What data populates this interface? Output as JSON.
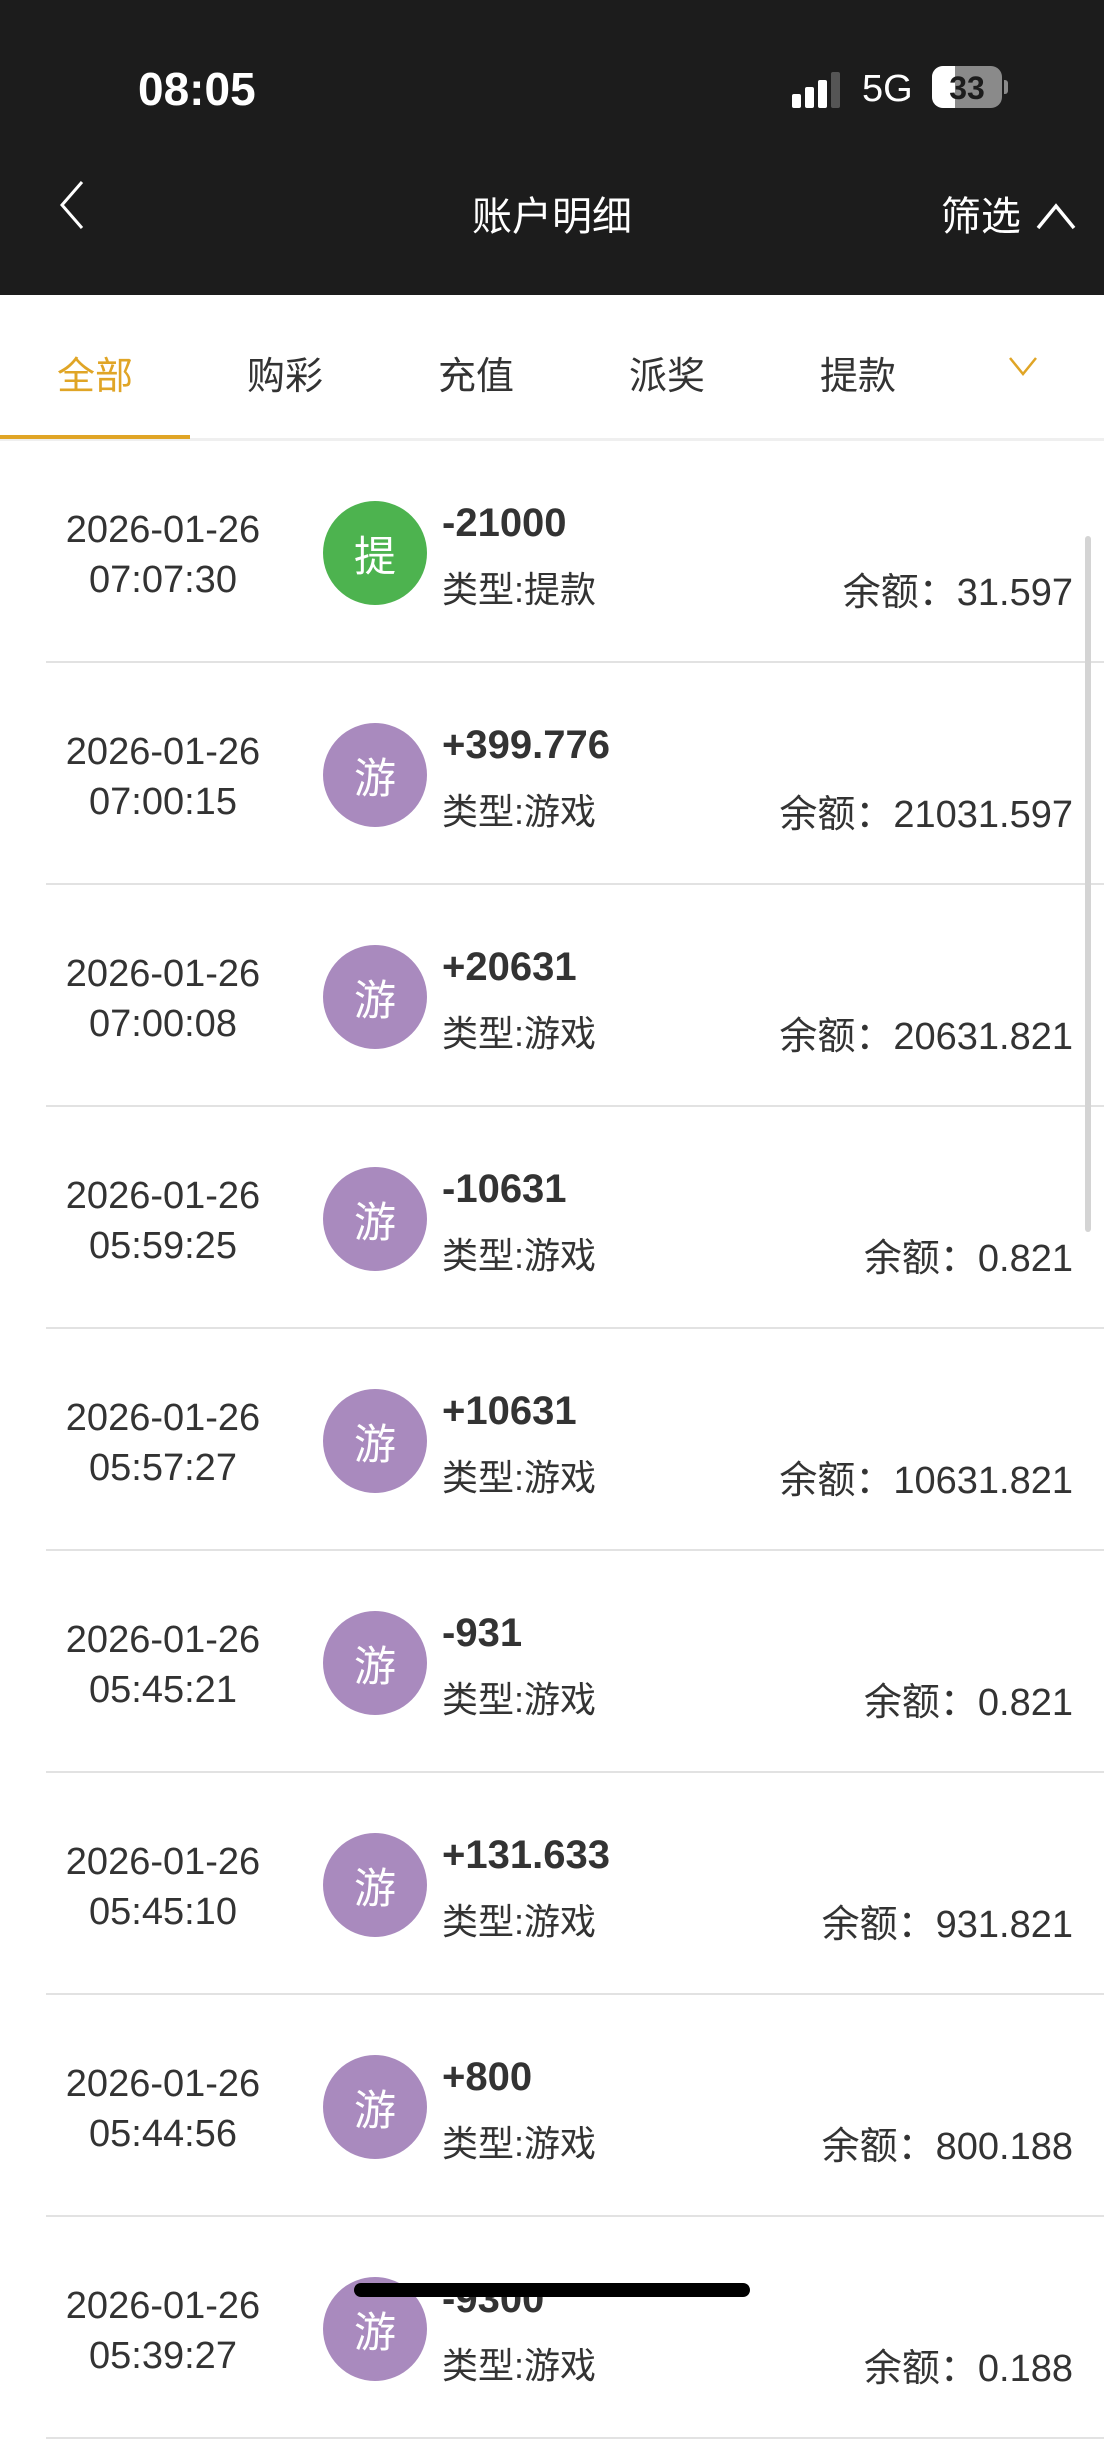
{
  "status_bar": {
    "time": "08:05",
    "network": "5G",
    "battery": "33",
    "battery_level": 0.33
  },
  "nav": {
    "back_icon": "chevron-left-icon",
    "title": "账户明细",
    "filter_label": "筛选",
    "filter_icon": "chevron-up-icon"
  },
  "tabs": {
    "items": [
      {
        "label": "全部",
        "active": true
      },
      {
        "label": "购彩"
      },
      {
        "label": "充值"
      },
      {
        "label": "派奖"
      },
      {
        "label": "提款"
      }
    ],
    "more_icon": "chevron-down-icon"
  },
  "colors": {
    "accent": "#e0a526",
    "withdraw_badge": "#4db34f",
    "game_badge": "#a98abe"
  },
  "records": [
    {
      "date": "2026-01-26",
      "time": "07:07:30",
      "badge": "提",
      "amount": "-21000",
      "type": "类型:提款",
      "balance_label": "余额：",
      "balance": "31.597",
      "kind": "withdraw"
    },
    {
      "date": "2026-01-26",
      "time": "07:00:15",
      "badge": "游",
      "amount": "+399.776",
      "type": "类型:游戏",
      "balance_label": "余额：",
      "balance": "21031.597",
      "kind": "game"
    },
    {
      "date": "2026-01-26",
      "time": "07:00:08",
      "badge": "游",
      "amount": "+20631",
      "type": "类型:游戏",
      "balance_label": "余额：",
      "balance": "20631.821",
      "kind": "game"
    },
    {
      "date": "2026-01-26",
      "time": "05:59:25",
      "badge": "游",
      "amount": "-10631",
      "type": "类型:游戏",
      "balance_label": "余额：",
      "balance": "0.821",
      "kind": "game"
    },
    {
      "date": "2026-01-26",
      "time": "05:57:27",
      "badge": "游",
      "amount": "+10631",
      "type": "类型:游戏",
      "balance_label": "余额：",
      "balance": "10631.821",
      "kind": "game"
    },
    {
      "date": "2026-01-26",
      "time": "05:45:21",
      "badge": "游",
      "amount": "-931",
      "type": "类型:游戏",
      "balance_label": "余额：",
      "balance": "0.821",
      "kind": "game"
    },
    {
      "date": "2026-01-26",
      "time": "05:45:10",
      "badge": "游",
      "amount": "+131.633",
      "type": "类型:游戏",
      "balance_label": "余额：",
      "balance": "931.821",
      "kind": "game"
    },
    {
      "date": "2026-01-26",
      "time": "05:44:56",
      "badge": "游",
      "amount": "+800",
      "type": "类型:游戏",
      "balance_label": "余额：",
      "balance": "800.188",
      "kind": "game"
    },
    {
      "date": "2026-01-26",
      "time": "05:39:27",
      "badge": "游",
      "amount": "-9300",
      "type": "类型:游戏",
      "balance_label": "余额：",
      "balance": "0.188",
      "kind": "game"
    }
  ]
}
